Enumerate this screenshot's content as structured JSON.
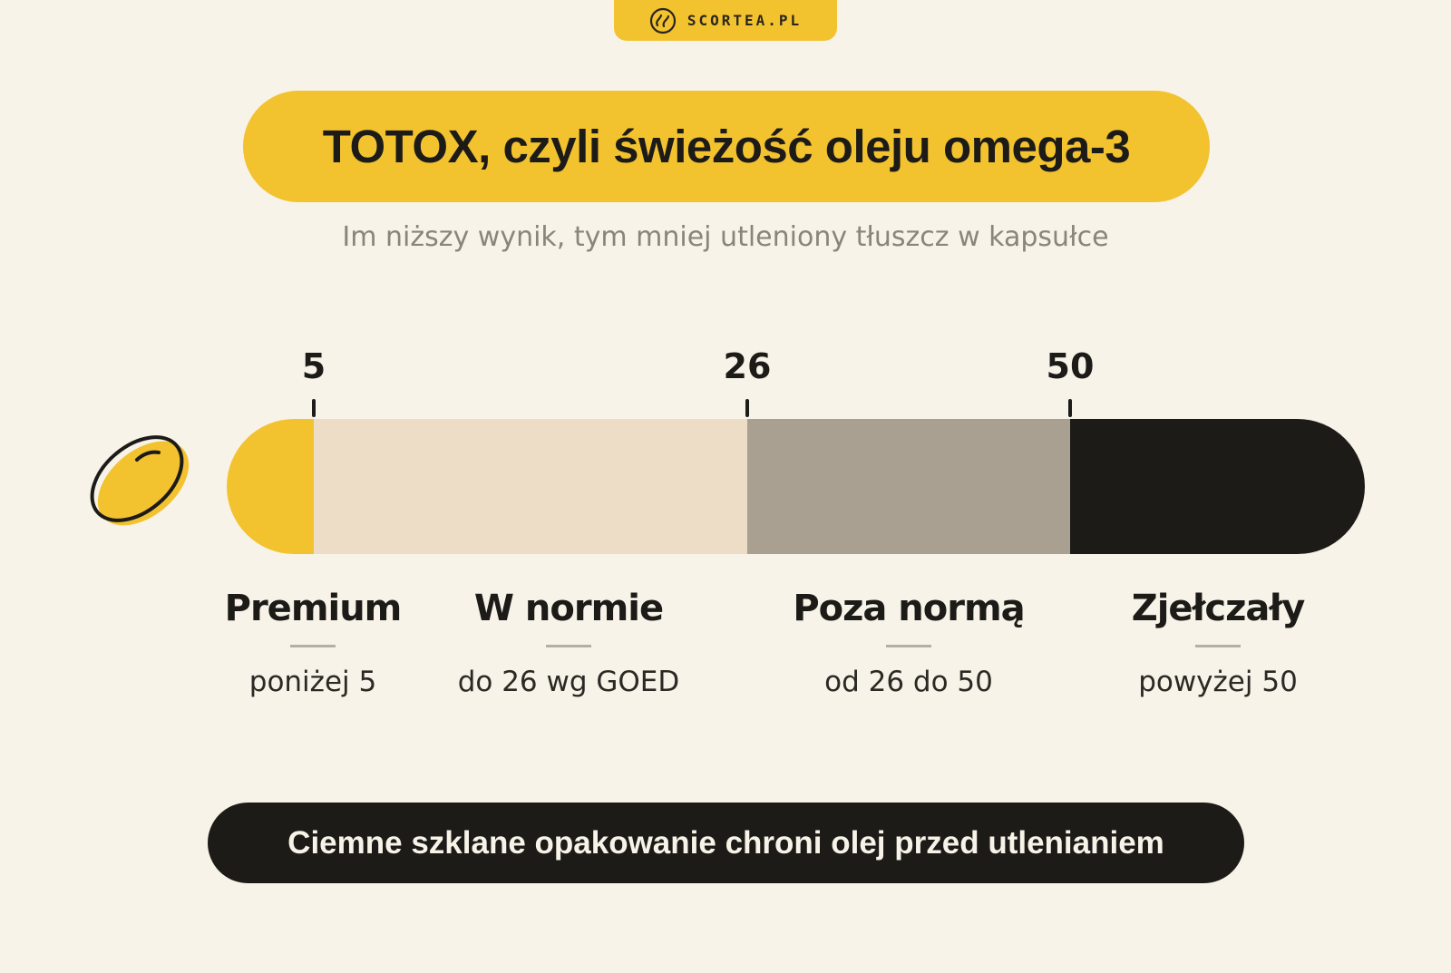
{
  "brand": "SCORTEA.PL",
  "title": "TOTOX, czyli świeżość oleju omega-3",
  "subtitle": "Im niższy wynik, tym mniej utleniony tłuszcz w kapsułce",
  "scale": {
    "ticks": [
      {
        "value": "5"
      },
      {
        "value": "26"
      },
      {
        "value": "50"
      }
    ],
    "segments": [
      {
        "name": "Premium",
        "range_text": "poniżej 5",
        "color": "#F2C22F"
      },
      {
        "name": "W normie",
        "range_text": "do 26 wg GOED",
        "color": "#EDDDC6"
      },
      {
        "name": "Poza normą",
        "range_text": "od 26 do 50",
        "color": "#A9A092"
      },
      {
        "name": "Zjełczały",
        "range_text": "powyżej 50",
        "color": "#1C1B18"
      }
    ]
  },
  "footer": "Ciemne szklane opakowanie chroni olej przed utlenianiem",
  "colors": {
    "background": "#F8F3E8",
    "accent": "#F2C22F",
    "dark": "#1C1B18"
  }
}
